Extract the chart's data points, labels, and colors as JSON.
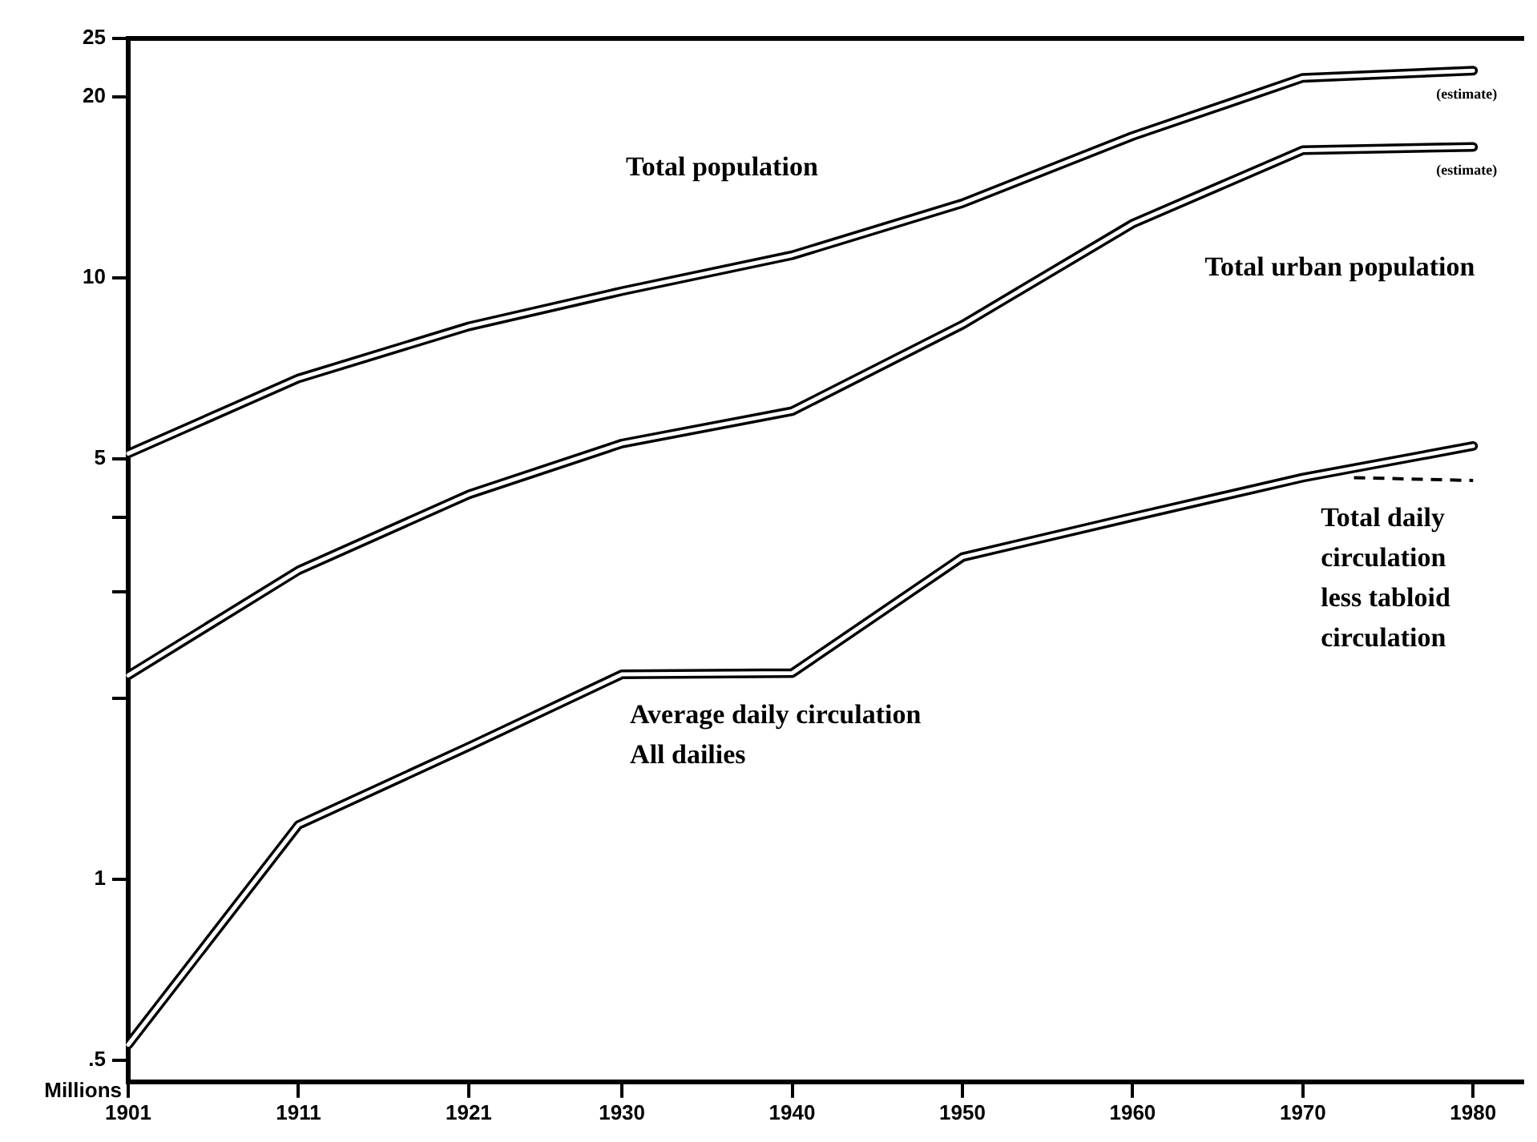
{
  "chart_data": {
    "type": "line",
    "ylabel": "Millions",
    "log": "y",
    "grid": false,
    "legend": false,
    "marker": "none",
    "x": [
      1901,
      1911,
      1921,
      1930,
      1940,
      1950,
      1960,
      1970,
      1980
    ],
    "xlim": [
      1901,
      1983
    ],
    "xticks": [
      1901,
      1911,
      1921,
      1930,
      1940,
      1950,
      1960,
      1970,
      1980
    ],
    "ylim": [
      0.46,
      25
    ],
    "yticks": [
      {
        "value": 0.5,
        "label": ".5"
      },
      1,
      {
        "value": 2,
        "label": null
      },
      {
        "value": 3,
        "label": null
      },
      {
        "value": 4,
        "label": null
      },
      5,
      10,
      20,
      25
    ],
    "series": [
      {
        "name": "Total population",
        "color": "#000000",
        "line_style": "solid",
        "values": [
          5.1,
          6.8,
          8.3,
          9.5,
          10.9,
          13.3,
          17.2,
          21.5,
          22.1
        ]
      },
      {
        "name": "Total urban population",
        "color": "#000000",
        "line_style": "solid",
        "values": [
          2.18,
          3.26,
          4.36,
          5.3,
          6.0,
          8.35,
          12.3,
          16.3,
          16.5
        ]
      },
      {
        "name": "Average daily circulation\nAll dailies",
        "color": "#000000",
        "line_style": "solid",
        "values": [
          0.53,
          1.23,
          1.66,
          2.19,
          2.2,
          3.43,
          4.0,
          4.65,
          5.25
        ]
      },
      {
        "name": "Total daily\ncirculation\nless tabloid\ncirculation",
        "color": "#000000",
        "line_style": "dashed",
        "x": [
          1973,
          1980
        ],
        "values": [
          4.65,
          4.6
        ]
      }
    ],
    "annotations": [
      {
        "text": "(estimate)",
        "x": 1980,
        "y": 22.1
      },
      {
        "text": "(estimate)",
        "x": 1980,
        "y": 16.5
      }
    ]
  }
}
